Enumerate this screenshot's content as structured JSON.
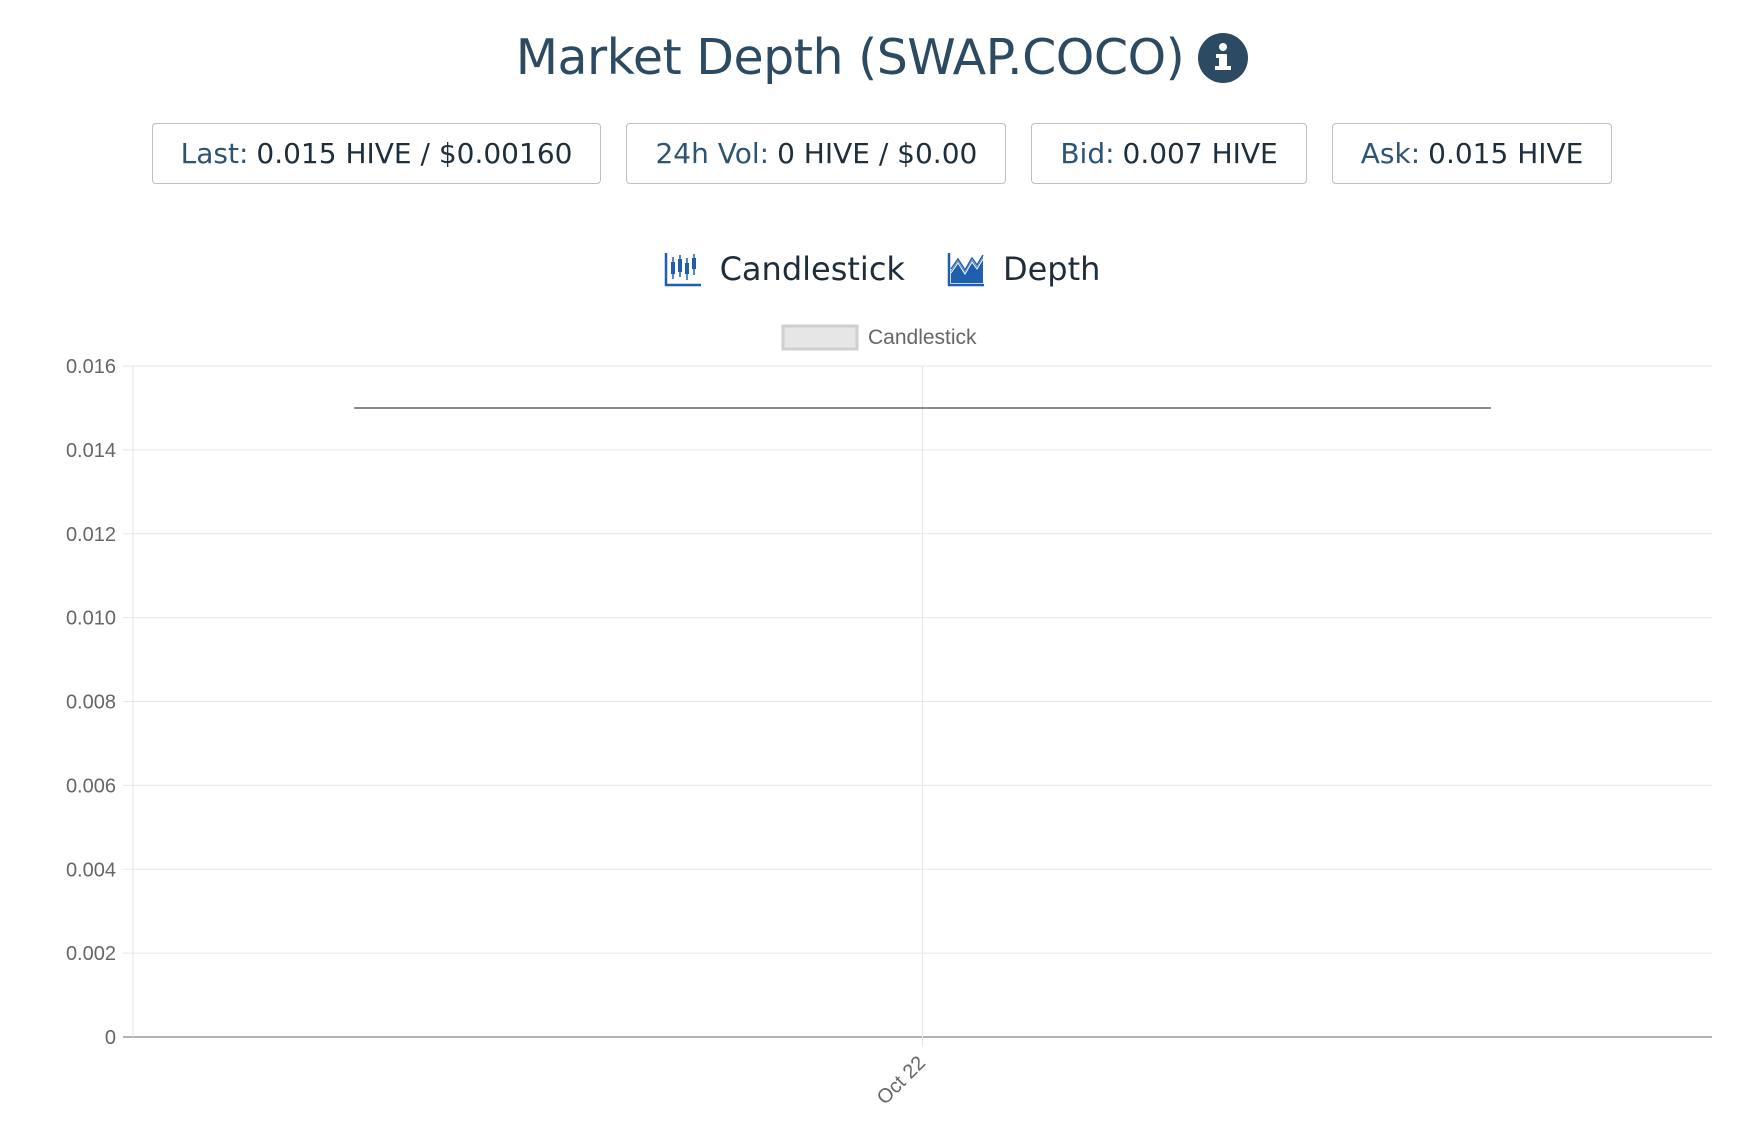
{
  "header": {
    "title": "Market Depth (SWAP.COCO)",
    "info_icon": "info-circle-icon"
  },
  "stats": [
    {
      "label": "Last:",
      "value": "0.015 HIVE / $0.00160"
    },
    {
      "label": "24h Vol:",
      "value": "0 HIVE / $0.00"
    },
    {
      "label": "Bid:",
      "value": "0.007 HIVE"
    },
    {
      "label": "Ask:",
      "value": "0.015 HIVE"
    }
  ],
  "tabs": [
    {
      "label": "Candlestick",
      "icon": "candlestick-chart-icon"
    },
    {
      "label": "Depth",
      "icon": "area-chart-icon"
    }
  ],
  "colors": {
    "title": "#2c4a62",
    "icon_blue": "#1f5fae",
    "grid": "#e6e6e6",
    "series": "#666666"
  },
  "chart_data": {
    "type": "line",
    "legend": {
      "label": "Candlestick",
      "position": "top-center"
    },
    "x": [
      "Oct 22"
    ],
    "x_ticks": [
      "Oct 22"
    ],
    "y_ticks": [
      "0",
      "0.002",
      "0.004",
      "0.006",
      "0.008",
      "0.010",
      "0.012",
      "0.014",
      "0.016"
    ],
    "ylim": [
      0,
      0.016
    ],
    "series": [
      {
        "values": [
          0.015
        ]
      }
    ],
    "grid": true
  }
}
